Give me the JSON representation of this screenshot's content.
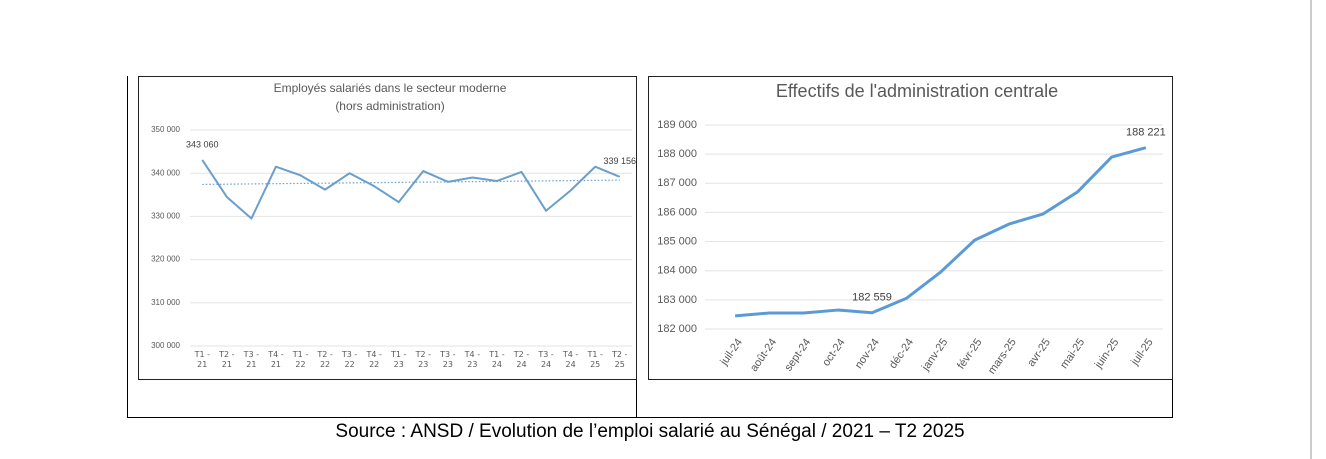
{
  "chart_data": [
    {
      "type": "line",
      "title": "Employés salariés dans le secteur moderne",
      "subtitle": "(hors administration)",
      "categories": [
        "T1 - 21",
        "T2 - 21",
        "T3 - 21",
        "T4 - 21",
        "T1 - 22",
        "T2 - 22",
        "T3 - 22",
        "T4 - 22",
        "T1 - 23",
        "T2 - 23",
        "T3 - 23",
        "T4 - 23",
        "T1 - 24",
        "T2 - 24",
        "T3 - 24",
        "T4 - 24",
        "T1 - 25",
        "T2 - 25"
      ],
      "values": [
        343060,
        334500,
        329500,
        341500,
        339500,
        336200,
        340000,
        337000,
        333300,
        340500,
        338000,
        339000,
        338200,
        340300,
        331300,
        336000,
        341500,
        339156
      ],
      "value_labels": [
        "343 060",
        null,
        null,
        null,
        null,
        null,
        null,
        null,
        null,
        null,
        null,
        null,
        null,
        null,
        null,
        null,
        null,
        "339 156"
      ],
      "trendline": [
        337400,
        338400
      ],
      "color": "#6a9fcb",
      "ylim": [
        300000,
        350000
      ],
      "yticks": [
        {
          "value": 300000,
          "label": "300 000"
        },
        {
          "value": 310000,
          "label": "310 000"
        },
        {
          "value": 320000,
          "label": "320 000"
        },
        {
          "value": 330000,
          "label": "330 000"
        },
        {
          "value": 340000,
          "label": "340 000"
        },
        {
          "value": 350000,
          "label": "350 000"
        }
      ],
      "grid": true
    },
    {
      "type": "line",
      "title": "Effectifs de l'administration centrale",
      "categories": [
        "juil-24",
        "août-24",
        "sept-24",
        "oct-24",
        "nov-24",
        "déc-24",
        "janv-25",
        "févr-25",
        "mars-25",
        "avr-25",
        "mai-25",
        "juin-25",
        "juil-25"
      ],
      "values": [
        182450,
        182550,
        182550,
        182650,
        182559,
        183050,
        183950,
        185050,
        185600,
        185950,
        186700,
        187900,
        188221
      ],
      "value_labels": [
        null,
        null,
        null,
        null,
        "182 559",
        null,
        null,
        null,
        null,
        null,
        null,
        null,
        "188 221"
      ],
      "color": "#5b9bd5",
      "ylim": [
        182000,
        189000
      ],
      "yticks": [
        {
          "value": 182000,
          "label": "182 000"
        },
        {
          "value": 183000,
          "label": "183 000"
        },
        {
          "value": 184000,
          "label": "184 000"
        },
        {
          "value": 185000,
          "label": "185 000"
        },
        {
          "value": 186000,
          "label": "186 000"
        },
        {
          "value": 187000,
          "label": "187 000"
        },
        {
          "value": 188000,
          "label": "188 000"
        },
        {
          "value": 189000,
          "label": "189 000"
        }
      ],
      "grid": true
    }
  ],
  "source": "Source : ANSD / Evolution de l’emploi salarié au Sénégal / 2021 – T2 2025"
}
